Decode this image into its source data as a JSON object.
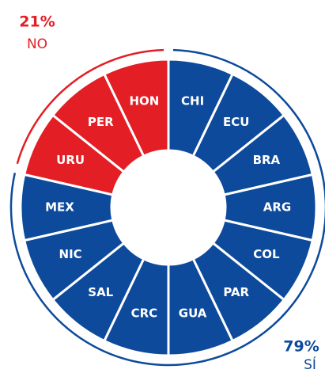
{
  "chart_data": {
    "type": "pie",
    "series": [
      {
        "name": "SÍ",
        "color": "#0d4a9c",
        "value": 79,
        "value_label": "79%",
        "categories": [
          "CHI",
          "ECU",
          "BRA",
          "ARG",
          "COL",
          "PAR",
          "GUA",
          "CRC",
          "SAL",
          "NIC",
          "MEX"
        ]
      },
      {
        "name": "NO",
        "color": "#e31e25",
        "value": 21,
        "value_label": "21%",
        "categories": [
          "URU",
          "PER",
          "HON"
        ]
      }
    ]
  }
}
